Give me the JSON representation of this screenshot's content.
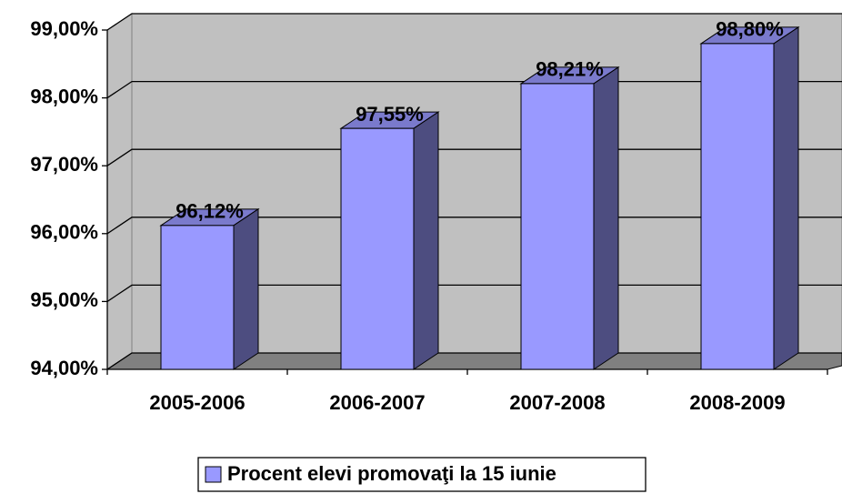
{
  "chart_data": {
    "type": "bar3d",
    "categories": [
      "2005-2006",
      "2006-2007",
      "2007-2008",
      "2008-2009"
    ],
    "series": [
      {
        "name": "Procent elevi promovaţi la 15 iunie",
        "color": "#9999ff",
        "values": [
          96.12,
          97.55,
          98.21,
          98.8
        ],
        "value_labels": [
          "96,12%",
          "97,55%",
          "98,21%",
          "98,80%"
        ]
      }
    ],
    "ylim": [
      94,
      99
    ],
    "yticks": [
      {
        "value": 94,
        "label": "94,00%"
      },
      {
        "value": 95,
        "label": "95,00%"
      },
      {
        "value": 96,
        "label": "96,00%"
      },
      {
        "value": 97,
        "label": "97,00%"
      },
      {
        "value": 98,
        "label": "98,00%"
      },
      {
        "value": 99,
        "label": "99,00%"
      }
    ],
    "grid": true,
    "legend": "bottom"
  }
}
